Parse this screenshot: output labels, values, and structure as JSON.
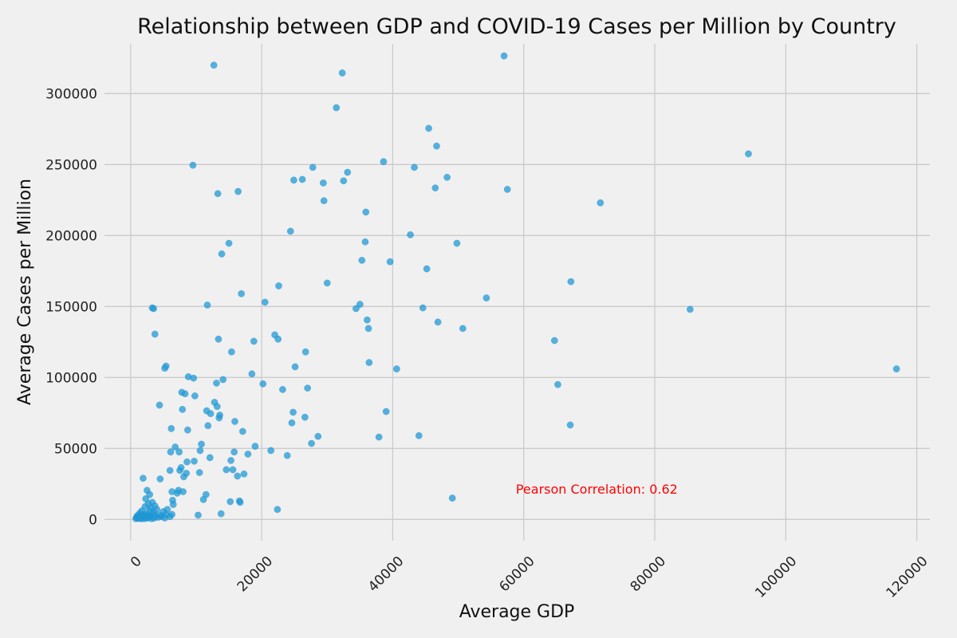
{
  "chart_data": {
    "type": "scatter",
    "title": "Relationship between GDP and COVID-19 Cases per Million by Country",
    "xlabel": "Average GDP",
    "ylabel": "Average Cases per Million",
    "xlim": [
      -4000,
      122000
    ],
    "ylim": [
      -15000,
      335000
    ],
    "xticks": [
      0,
      20000,
      40000,
      60000,
      80000,
      100000,
      120000
    ],
    "xtick_labels": [
      "0",
      "20000",
      "40000",
      "60000",
      "80000",
      "100000",
      "120000"
    ],
    "yticks": [
      0,
      50000,
      100000,
      150000,
      200000,
      250000,
      300000
    ],
    "ytick_labels": [
      "0",
      "50000",
      "100000",
      "150000",
      "200000",
      "250000",
      "300000"
    ],
    "grid": true,
    "point_color": "#1f9bd7",
    "annotation": {
      "text": "Pearson Correlation: 0.62",
      "x": 58800,
      "y": 21000,
      "color": "#ff0000"
    },
    "points": [
      [
        800,
        500
      ],
      [
        900,
        1500
      ],
      [
        1000,
        2500
      ],
      [
        1100,
        800
      ],
      [
        1200,
        3000
      ],
      [
        1300,
        1200
      ],
      [
        1400,
        4500
      ],
      [
        1500,
        500
      ],
      [
        1600,
        2000
      ],
      [
        1700,
        6000
      ],
      [
        1800,
        1000
      ],
      [
        1900,
        3500
      ],
      [
        2000,
        500
      ],
      [
        2100,
        2500
      ],
      [
        2200,
        9000
      ],
      [
        2300,
        1500
      ],
      [
        2400,
        4000
      ],
      [
        2500,
        800
      ],
      [
        2600,
        3000
      ],
      [
        2700,
        11000
      ],
      [
        2800,
        1500
      ],
      [
        2900,
        6000
      ],
      [
        3000,
        2000
      ],
      [
        3100,
        8000
      ],
      [
        3200,
        500
      ],
      [
        3300,
        12000
      ],
      [
        3400,
        3500
      ],
      [
        3500,
        5000
      ],
      [
        3600,
        1000
      ],
      [
        3700,
        9500
      ],
      [
        3800,
        2500
      ],
      [
        4000,
        7000
      ],
      [
        4200,
        1500
      ],
      [
        4500,
        3000
      ],
      [
        4700,
        2000
      ],
      [
        5000,
        5500
      ],
      [
        5200,
        1000
      ],
      [
        5400,
        3500
      ],
      [
        5600,
        7000
      ],
      [
        6000,
        2000
      ],
      [
        6300,
        3500
      ],
      [
        1900,
        29000
      ],
      [
        2300,
        14500
      ],
      [
        2500,
        20500
      ],
      [
        2900,
        17500
      ],
      [
        3300,
        149000
      ],
      [
        3500,
        148500
      ],
      [
        3700,
        130500
      ],
      [
        4400,
        80500
      ],
      [
        4500,
        28500
      ],
      [
        5200,
        106500
      ],
      [
        5400,
        108000
      ],
      [
        6000,
        34500
      ],
      [
        6100,
        47500
      ],
      [
        6200,
        64000
      ],
      [
        6300,
        19500
      ],
      [
        6400,
        13500
      ],
      [
        6500,
        10500
      ],
      [
        6800,
        51000
      ],
      [
        7100,
        18500
      ],
      [
        7300,
        20500
      ],
      [
        7400,
        47500
      ],
      [
        7500,
        34500
      ],
      [
        7700,
        36500
      ],
      [
        7800,
        89500
      ],
      [
        7900,
        77500
      ],
      [
        8000,
        19500
      ],
      [
        8100,
        30000
      ],
      [
        8300,
        88500
      ],
      [
        8500,
        32500
      ],
      [
        8600,
        40500
      ],
      [
        8700,
        63000
      ],
      [
        8800,
        100500
      ],
      [
        9500,
        249500
      ],
      [
        9600,
        99500
      ],
      [
        9700,
        41000
      ],
      [
        9800,
        87000
      ],
      [
        10300,
        3000
      ],
      [
        10500,
        33000
      ],
      [
        10600,
        48500
      ],
      [
        10800,
        53000
      ],
      [
        11100,
        14000
      ],
      [
        11500,
        17500
      ],
      [
        11600,
        76500
      ],
      [
        11700,
        151000
      ],
      [
        11800,
        66000
      ],
      [
        12100,
        43500
      ],
      [
        12200,
        74500
      ],
      [
        12700,
        320000
      ],
      [
        12800,
        82500
      ],
      [
        13100,
        96000
      ],
      [
        13200,
        79500
      ],
      [
        13300,
        229500
      ],
      [
        13400,
        127000
      ],
      [
        13500,
        71500
      ],
      [
        13600,
        73500
      ],
      [
        13800,
        4000
      ],
      [
        13900,
        187000
      ],
      [
        14100,
        98500
      ],
      [
        14600,
        35000
      ],
      [
        15000,
        194500
      ],
      [
        15200,
        12500
      ],
      [
        15300,
        41500
      ],
      [
        15400,
        118000
      ],
      [
        15600,
        35000
      ],
      [
        15800,
        47500
      ],
      [
        15900,
        69000
      ],
      [
        16300,
        30500
      ],
      [
        16400,
        231000
      ],
      [
        16600,
        13000
      ],
      [
        16700,
        12000
      ],
      [
        16900,
        159000
      ],
      [
        17100,
        62000
      ],
      [
        17300,
        32000
      ],
      [
        17900,
        46000
      ],
      [
        18500,
        102500
      ],
      [
        18800,
        125500
      ],
      [
        19000,
        51500
      ],
      [
        20200,
        95500
      ],
      [
        20500,
        153000
      ],
      [
        21400,
        48500
      ],
      [
        22000,
        130000
      ],
      [
        22400,
        7000
      ],
      [
        22500,
        127000
      ],
      [
        22600,
        164500
      ],
      [
        23200,
        91500
      ],
      [
        23900,
        45000
      ],
      [
        24400,
        203000
      ],
      [
        24600,
        68000
      ],
      [
        24800,
        75500
      ],
      [
        24900,
        239000
      ],
      [
        25100,
        107500
      ],
      [
        26200,
        239500
      ],
      [
        26600,
        72000
      ],
      [
        26700,
        118000
      ],
      [
        27000,
        92500
      ],
      [
        27600,
        53500
      ],
      [
        27800,
        248000
      ],
      [
        28600,
        58500
      ],
      [
        29400,
        237000
      ],
      [
        29500,
        224500
      ],
      [
        30000,
        166500
      ],
      [
        31400,
        290000
      ],
      [
        32300,
        314500
      ],
      [
        32500,
        238500
      ],
      [
        33100,
        244500
      ],
      [
        34400,
        148500
      ],
      [
        35000,
        151500
      ],
      [
        35300,
        182500
      ],
      [
        35800,
        195500
      ],
      [
        35900,
        216500
      ],
      [
        36100,
        140500
      ],
      [
        36300,
        134500
      ],
      [
        36400,
        110500
      ],
      [
        37900,
        58000
      ],
      [
        38600,
        252000
      ],
      [
        39000,
        76000
      ],
      [
        39600,
        181500
      ],
      [
        40600,
        106000
      ],
      [
        42700,
        200500
      ],
      [
        43300,
        248000
      ],
      [
        44000,
        59000
      ],
      [
        44600,
        149000
      ],
      [
        45200,
        176500
      ],
      [
        45500,
        275500
      ],
      [
        46500,
        233500
      ],
      [
        46700,
        263000
      ],
      [
        46900,
        139000
      ],
      [
        48300,
        241000
      ],
      [
        49100,
        15000
      ],
      [
        49800,
        194500
      ],
      [
        50700,
        134500
      ],
      [
        54300,
        156000
      ],
      [
        57000,
        326500
      ],
      [
        57500,
        232500
      ],
      [
        64700,
        126000
      ],
      [
        65200,
        95000
      ],
      [
        67100,
        66500
      ],
      [
        67200,
        167500
      ],
      [
        71700,
        223000
      ],
      [
        85400,
        148000
      ],
      [
        94300,
        257500
      ],
      [
        116900,
        106000
      ]
    ]
  }
}
